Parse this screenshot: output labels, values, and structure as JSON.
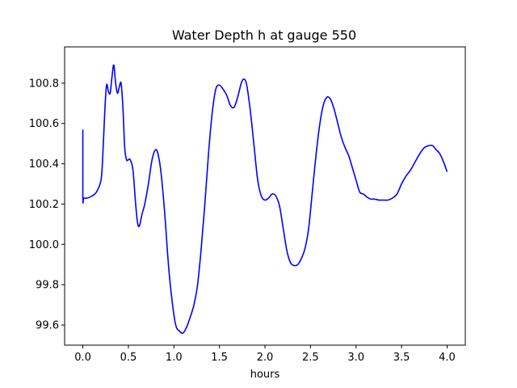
{
  "chart_data": {
    "type": "line",
    "title": "Water Depth h at gauge 550",
    "xlabel": "hours",
    "ylabel": "",
    "xlim": [
      -0.2,
      4.2
    ],
    "ylim": [
      99.5,
      100.98
    ],
    "x_ticks": [
      0.0,
      0.5,
      1.0,
      1.5,
      2.0,
      2.5,
      3.0,
      3.5,
      4.0
    ],
    "x_tick_labels": [
      "0.0",
      "0.5",
      "1.0",
      "1.5",
      "2.0",
      "2.5",
      "3.0",
      "3.5",
      "4.0"
    ],
    "y_ticks": [
      99.6,
      99.8,
      100.0,
      100.2,
      100.4,
      100.6,
      100.8
    ],
    "y_tick_labels": [
      "99.6",
      "99.8",
      "100.0",
      "100.2",
      "100.4",
      "100.6",
      "100.8"
    ],
    "grid": false,
    "series": [
      {
        "color": "#0000ff",
        "x": [
          0.0,
          0.0,
          0.01,
          0.05,
          0.1,
          0.15,
          0.2,
          0.22,
          0.24,
          0.26,
          0.28,
          0.3,
          0.32,
          0.34,
          0.36,
          0.38,
          0.4,
          0.42,
          0.44,
          0.46,
          0.48,
          0.5,
          0.52,
          0.55,
          0.58,
          0.6,
          0.62,
          0.65,
          0.68,
          0.72,
          0.76,
          0.8,
          0.83,
          0.86,
          0.9,
          0.94,
          0.98,
          1.02,
          1.06,
          1.1,
          1.14,
          1.18,
          1.22,
          1.26,
          1.3,
          1.34,
          1.38,
          1.42,
          1.46,
          1.5,
          1.54,
          1.58,
          1.62,
          1.66,
          1.7,
          1.74,
          1.77,
          1.8,
          1.84,
          1.88,
          1.92,
          1.96,
          2.0,
          2.04,
          2.08,
          2.12,
          2.16,
          2.2,
          2.24,
          2.28,
          2.32,
          2.36,
          2.4,
          2.44,
          2.48,
          2.52,
          2.56,
          2.6,
          2.64,
          2.68,
          2.72,
          2.76,
          2.8,
          2.84,
          2.88,
          2.92,
          2.96,
          3.0,
          3.04,
          3.08,
          3.12,
          3.16,
          3.2,
          3.25,
          3.3,
          3.35,
          3.4,
          3.45,
          3.5,
          3.55,
          3.6,
          3.65,
          3.7,
          3.75,
          3.8,
          3.84,
          3.88,
          3.92,
          3.96,
          4.0
        ],
        "y": [
          100.57,
          100.23,
          100.23,
          100.23,
          100.24,
          100.26,
          100.32,
          100.45,
          100.65,
          100.79,
          100.76,
          100.75,
          100.83,
          100.89,
          100.8,
          100.75,
          100.78,
          100.8,
          100.68,
          100.48,
          100.42,
          100.42,
          100.42,
          100.37,
          100.2,
          100.11,
          100.09,
          100.15,
          100.2,
          100.3,
          100.42,
          100.47,
          100.44,
          100.35,
          100.15,
          99.9,
          99.72,
          99.6,
          99.57,
          99.56,
          99.59,
          99.64,
          99.7,
          99.8,
          99.98,
          100.2,
          100.45,
          100.65,
          100.77,
          100.79,
          100.77,
          100.74,
          100.69,
          100.68,
          100.73,
          100.8,
          100.82,
          100.79,
          100.66,
          100.49,
          100.32,
          100.24,
          100.22,
          100.23,
          100.25,
          100.24,
          100.19,
          100.08,
          99.97,
          99.91,
          99.895,
          99.9,
          99.93,
          99.98,
          100.08,
          100.26,
          100.44,
          100.59,
          100.69,
          100.73,
          100.72,
          100.67,
          100.6,
          100.53,
          100.48,
          100.44,
          100.38,
          100.32,
          100.26,
          100.25,
          100.235,
          100.225,
          100.225,
          100.22,
          100.22,
          100.22,
          100.23,
          100.25,
          100.3,
          100.34,
          100.37,
          100.41,
          100.45,
          100.48,
          100.49,
          100.49,
          100.47,
          100.45,
          100.41,
          100.36
        ]
      }
    ]
  }
}
